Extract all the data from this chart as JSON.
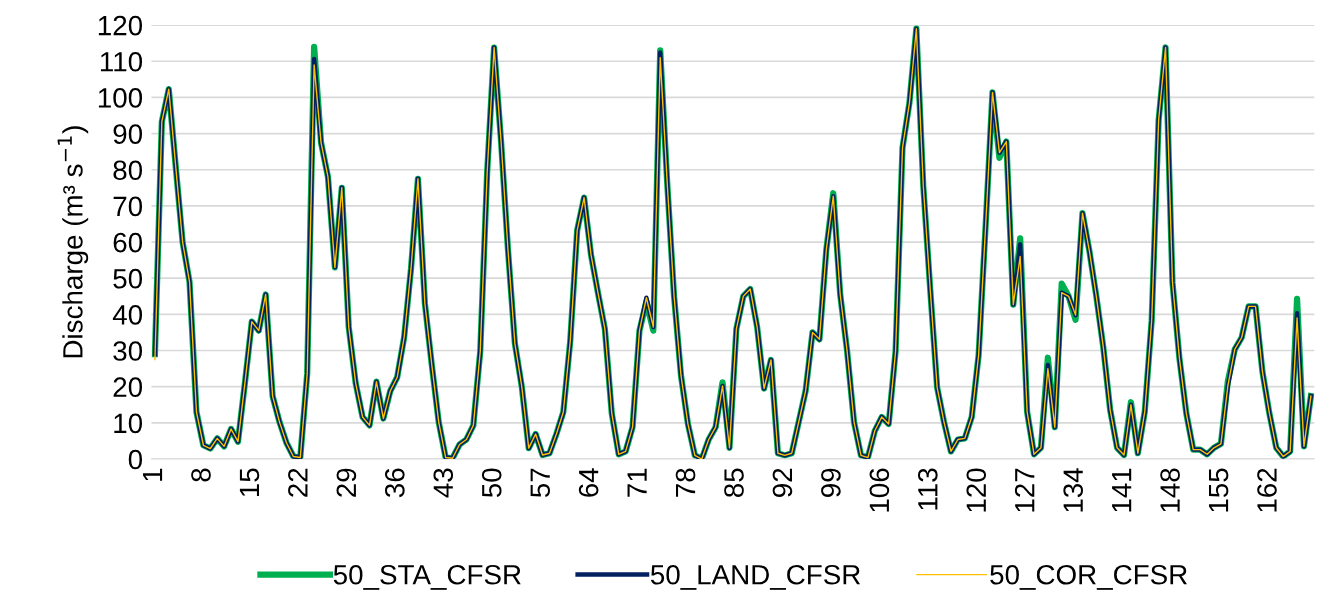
{
  "chart_data": {
    "type": "line",
    "ylabel": "Discharge (m³ s$^{−1}$)",
    "categories": [
      "1",
      null,
      null,
      null,
      null,
      null,
      null,
      "8",
      null,
      null,
      null,
      null,
      null,
      null,
      "15",
      null,
      null,
      null,
      null,
      null,
      null,
      "22",
      null,
      null,
      null,
      null,
      null,
      null,
      "29",
      null,
      null,
      null,
      null,
      null,
      null,
      "36",
      null,
      null,
      null,
      null,
      null,
      null,
      "43",
      null,
      null,
      null,
      null,
      null,
      null,
      "50",
      null,
      null,
      null,
      null,
      null,
      null,
      "57",
      null,
      null,
      null,
      null,
      null,
      null,
      "64",
      null,
      null,
      null,
      null,
      null,
      null,
      "71",
      null,
      null,
      null,
      null,
      null,
      null,
      "78",
      null,
      null,
      null,
      null,
      null,
      null,
      "85",
      null,
      null,
      null,
      null,
      null,
      null,
      "92",
      null,
      null,
      null,
      null,
      null,
      null,
      "99",
      null,
      null,
      null,
      null,
      null,
      null,
      "106",
      null,
      null,
      null,
      null,
      null,
      null,
      "113",
      null,
      null,
      null,
      null,
      null,
      null,
      "120",
      null,
      null,
      null,
      null,
      null,
      null,
      "127",
      null,
      null,
      null,
      null,
      null,
      null,
      "134",
      null,
      null,
      null,
      null,
      null,
      null,
      "141",
      null,
      null,
      null,
      null,
      null,
      null,
      "148",
      null,
      null,
      null,
      null,
      null,
      null,
      "155",
      null,
      null,
      null,
      null,
      null,
      null,
      "162",
      null,
      null,
      null,
      null,
      null,
      null
    ],
    "series": [
      {
        "name": "50_STA_CFSR",
        "color": "#00b050",
        "values": [
          29,
          93.3,
          102.3,
          81,
          60,
          49,
          13,
          3.8,
          2.9,
          5.7,
          3.5,
          8.3,
          4.8,
          21,
          38,
          35.5,
          45.5,
          17.4,
          10.2,
          4.5,
          0.7,
          0.4,
          23.6,
          114,
          87.5,
          78,
          53,
          75,
          36.5,
          21,
          11.6,
          9.3,
          21.4,
          11.2,
          18.8,
          22.6,
          33.6,
          52.7,
          77.5,
          43,
          26,
          10.2,
          0.4,
          0.2,
          4,
          5.4,
          9.3,
          29.8,
          79.4,
          113.8,
          88,
          58,
          32,
          20,
          3,
          6.9,
          1.1,
          1.6,
          6.9,
          13,
          32.6,
          63.2,
          72.3,
          56.5,
          46,
          36,
          12.6,
          1.3,
          2.1,
          8.8,
          35.5,
          43.5,
          35.5,
          113,
          76.6,
          45,
          23.1,
          9.7,
          1,
          0,
          5.4,
          8.8,
          21.2,
          3.1,
          36,
          45,
          47,
          36.5,
          19.5,
          27.4,
          1.6,
          1,
          1.6,
          10.2,
          18.8,
          35,
          33.1,
          58,
          73.5,
          45.5,
          29.8,
          10.2,
          1,
          0.4,
          7.8,
          11.6,
          9.7,
          29.8,
          86.1,
          98.5,
          119,
          75.6,
          47,
          19.8,
          10.2,
          2.1,
          5.4,
          5.7,
          11.6,
          28.8,
          64.2,
          101.4,
          83.3,
          87.8,
          42.7,
          61,
          13.1,
          1.3,
          3.1,
          28,
          8.8,
          48.5,
          45,
          38.5,
          68,
          57.5,
          45,
          31,
          13.6,
          3.1,
          1.1,
          15.7,
          1.6,
          13.1,
          38.4,
          93.7,
          113.8,
          48.9,
          27.9,
          12.6,
          2.6,
          2.6,
          1.3,
          3.1,
          4.2,
          21.5,
          30.3,
          33.6,
          42.2,
          42.2,
          24.1,
          12.6,
          3.1,
          0.7,
          2.1,
          44.3,
          3.5,
          17.4
        ]
      },
      {
        "name": "50_LAND_CFSR",
        "color": "#002060",
        "values": [
          29,
          93.3,
          102.3,
          81,
          60,
          49,
          13,
          3.8,
          2.9,
          5.7,
          3.5,
          8.3,
          4.8,
          21,
          38,
          35.5,
          45.5,
          17.4,
          10.2,
          4.5,
          0.7,
          0.4,
          23.6,
          110.6,
          87.5,
          78,
          53,
          75,
          36.5,
          21,
          11.6,
          9.3,
          21.4,
          11.2,
          18.8,
          22.6,
          33.6,
          52.7,
          77.5,
          43,
          26,
          10.2,
          0.4,
          0.2,
          4,
          5.4,
          9.3,
          29.8,
          79.4,
          113.8,
          88,
          58,
          32,
          20,
          3,
          6.9,
          1.1,
          1.6,
          6.9,
          13,
          32.6,
          63.2,
          72.3,
          56.5,
          46,
          36,
          12.6,
          1.3,
          2.1,
          8.8,
          35.5,
          44.6,
          36.5,
          112.4,
          76.6,
          45,
          23.1,
          9.7,
          1,
          0,
          5.4,
          8.8,
          20.2,
          3.1,
          36,
          45,
          47,
          36.5,
          19.5,
          27.4,
          1.6,
          1,
          1.6,
          10.2,
          18.8,
          35,
          33.1,
          58,
          72.7,
          45.5,
          29.8,
          10.2,
          1,
          0.4,
          7.8,
          11.6,
          9.7,
          29.8,
          86.1,
          98.5,
          119,
          75.6,
          47,
          19.8,
          10.2,
          2.1,
          5.4,
          5.7,
          11.6,
          28.8,
          64.2,
          101.4,
          84.7,
          87.8,
          42.7,
          59.4,
          13.1,
          1.3,
          3.1,
          26,
          8.8,
          46,
          45,
          39.8,
          68,
          57.5,
          45,
          31,
          13.6,
          3.1,
          1.1,
          15,
          1.6,
          13.1,
          38.4,
          93.7,
          113.8,
          48.9,
          27.9,
          12.6,
          2.6,
          2.6,
          1.3,
          3.1,
          4.2,
          20.2,
          30.3,
          33.6,
          42.2,
          42.2,
          24.1,
          12.6,
          3.1,
          0.7,
          2.1,
          40.3,
          3.5,
          17.4
        ]
      },
      {
        "name": "50_COR_CFSR",
        "color": "#ffc000",
        "values": [
          27.5,
          93.3,
          102.3,
          81,
          60,
          49,
          13,
          3.8,
          2.9,
          5.7,
          3.5,
          8.3,
          4.8,
          21,
          38,
          35.5,
          45.5,
          17.4,
          10.2,
          4.5,
          0.7,
          0.4,
          23.6,
          109,
          87.5,
          78,
          53,
          75,
          36.5,
          21,
          11.6,
          9.3,
          21.4,
          11.2,
          18.8,
          22.6,
          33.6,
          52.7,
          77.5,
          43,
          26,
          10.2,
          0.4,
          0.2,
          4,
          5.4,
          9.3,
          29.8,
          79.4,
          113.8,
          88,
          58,
          32,
          20,
          3,
          6.9,
          1.1,
          1.6,
          6.9,
          13,
          32.6,
          63.2,
          72.3,
          56.5,
          46,
          36,
          12.6,
          1.3,
          2.1,
          8.8,
          35.5,
          44.6,
          36.5,
          111,
          76.6,
          45,
          23.1,
          9.7,
          1,
          0,
          5.4,
          8.8,
          20.2,
          3.1,
          36,
          45,
          47,
          36.5,
          19.5,
          27.4,
          1.6,
          1,
          1.6,
          10.2,
          18.8,
          35,
          33.1,
          58,
          72.7,
          45.5,
          29.8,
          10.2,
          1,
          0.4,
          7.8,
          11.6,
          9.7,
          29.8,
          86.1,
          98.5,
          119,
          75.6,
          47,
          19.8,
          10.2,
          2.1,
          5.4,
          5.7,
          11.6,
          28.8,
          64.2,
          101.4,
          84.7,
          87.8,
          42.7,
          56,
          13.1,
          1.3,
          3.1,
          25,
          8.8,
          46,
          45,
          39.8,
          68,
          57.5,
          45,
          31,
          13.6,
          3.1,
          1.1,
          15,
          1.6,
          13.1,
          38.4,
          93.7,
          113.8,
          48.9,
          27.9,
          12.6,
          2.6,
          2.6,
          1.3,
          3.1,
          4.2,
          20.2,
          30.3,
          33.6,
          42.2,
          42.2,
          24.1,
          12.6,
          3.1,
          0.7,
          2.1,
          39,
          3.5,
          17.4
        ]
      }
    ],
    "ylim": [
      0,
      120
    ],
    "yticks": [
      0,
      10,
      20,
      30,
      40,
      50,
      60,
      70,
      80,
      90,
      100,
      110,
      120
    ],
    "grid": "y",
    "legend": "bottom",
    "line_style": "solid"
  }
}
